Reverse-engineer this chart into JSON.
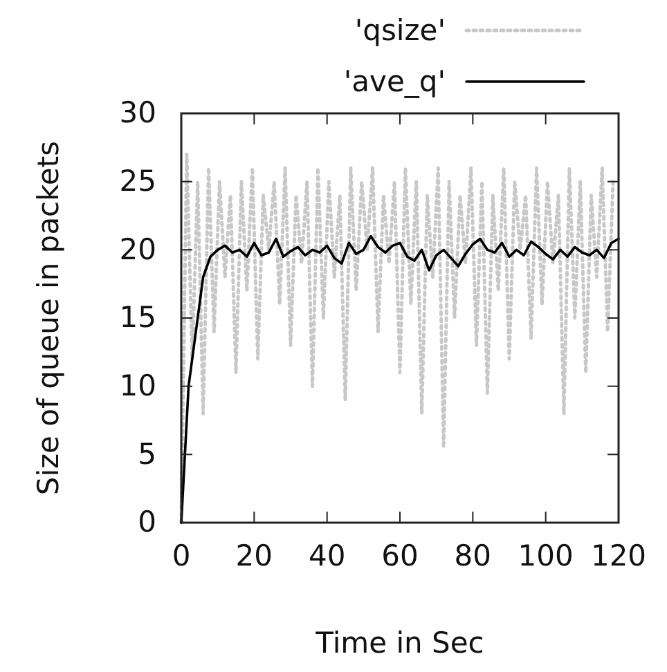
{
  "chart_data": {
    "type": "line",
    "xlabel": "Time in Sec",
    "ylabel": "Size of queue in packets",
    "xlim": [
      0,
      120
    ],
    "ylim": [
      0,
      30
    ],
    "xticks": [
      0,
      20,
      40,
      60,
      80,
      100,
      120
    ],
    "yticks": [
      0,
      5,
      10,
      15,
      20,
      25,
      30
    ],
    "grid": false,
    "legend": "top right",
    "marker": "none",
    "series": [
      {
        "name": "'qsize'",
        "color": "#c8c8c8",
        "line_style": "dotted",
        "x": [
          0,
          1.5,
          3,
          4.5,
          6,
          7.5,
          9,
          10.5,
          12,
          13.5,
          15,
          16.5,
          18,
          19.5,
          21,
          22.5,
          24,
          25.5,
          27,
          28.5,
          30,
          31.5,
          33,
          34.5,
          36,
          37.5,
          39,
          40.5,
          42,
          43.5,
          45,
          46.5,
          48,
          49.5,
          51,
          52.5,
          54,
          55.5,
          57,
          58.5,
          60,
          61.5,
          63,
          64.5,
          66,
          67.5,
          69,
          70.5,
          72,
          73.5,
          75,
          76.5,
          78,
          79.5,
          81,
          82.5,
          84,
          85.5,
          87,
          88.5,
          90,
          91.5,
          93,
          94.5,
          96,
          97.5,
          99,
          100.5,
          102,
          103.5,
          105,
          106.5,
          108,
          109.5,
          111,
          112.5,
          114,
          115.5,
          117,
          118.5
        ],
        "values": [
          0,
          27,
          12,
          25,
          8,
          26,
          14,
          25,
          18,
          24,
          11,
          25,
          17,
          26,
          12,
          24,
          20,
          25,
          16,
          26,
          13,
          24,
          19,
          25,
          10,
          26,
          15,
          25,
          18,
          24,
          9,
          26,
          17,
          25,
          20,
          26,
          14,
          24,
          19,
          25,
          11,
          26,
          16,
          25,
          8,
          24,
          18,
          26,
          5.5,
          25,
          15,
          24,
          19,
          26,
          13,
          25,
          9.5,
          24,
          17,
          26,
          12,
          25,
          20,
          24,
          13.5,
          26,
          16,
          25,
          19,
          24,
          8,
          26,
          15,
          25,
          11,
          24,
          18,
          26,
          14,
          25
        ]
      },
      {
        "name": "'ave_q'",
        "color": "#000000",
        "line_style": "solid",
        "x": [
          0,
          2,
          4,
          6,
          8,
          10,
          12,
          14,
          16,
          18,
          20,
          22,
          24,
          26,
          28,
          30,
          32,
          34,
          36,
          38,
          40,
          42,
          44,
          46,
          48,
          50,
          52,
          54,
          56,
          58,
          60,
          62,
          64,
          66,
          68,
          70,
          72,
          74,
          76,
          78,
          80,
          82,
          84,
          86,
          88,
          90,
          92,
          94,
          96,
          98,
          100,
          102,
          104,
          106,
          108,
          110,
          112,
          114,
          116,
          118,
          120
        ],
        "values": [
          0,
          10,
          14,
          18,
          19.5,
          20,
          20.3,
          19.8,
          20,
          19.5,
          20.5,
          19.6,
          19.8,
          20.8,
          19.5,
          19.9,
          20.2,
          19.6,
          20,
          19.8,
          20.3,
          19.4,
          19,
          20.5,
          19.7,
          20,
          21,
          20.2,
          19.8,
          20.3,
          20.5,
          19.5,
          19.2,
          20,
          18.5,
          19.6,
          20,
          19.4,
          18.8,
          19.7,
          20.4,
          20.8,
          20,
          19.8,
          20.5,
          19.5,
          20,
          19.6,
          20.6,
          20.2,
          19.7,
          19.3,
          20,
          19.5,
          20.2,
          19.8,
          19.6,
          20,
          19.4,
          20.5,
          20.8
        ]
      }
    ]
  }
}
